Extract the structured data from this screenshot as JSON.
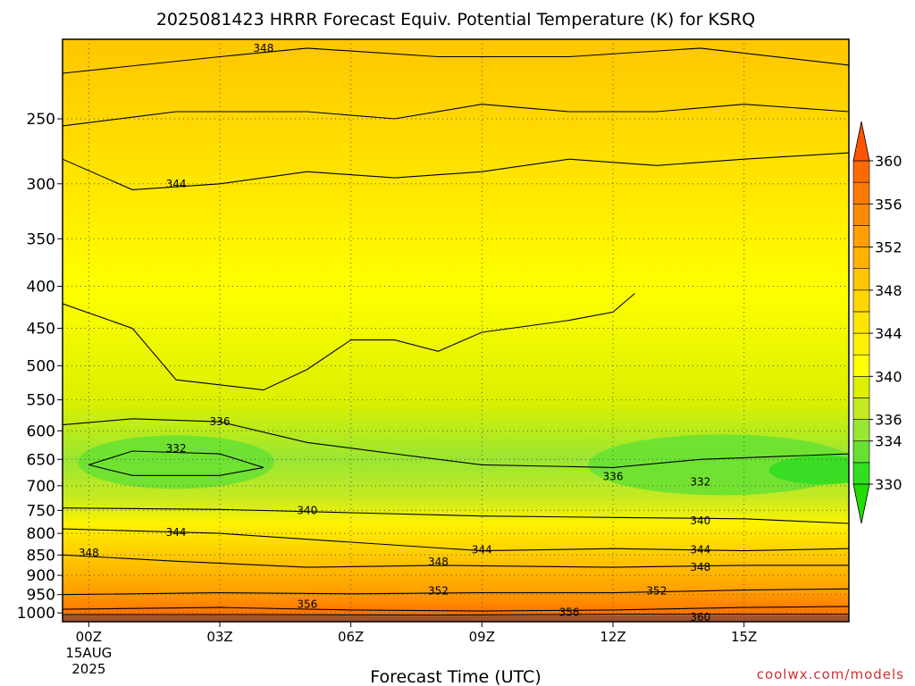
{
  "chart_data": {
    "type": "heatmap",
    "title": "2025081423 HRRR Forecast Equiv. Potential Temperature (K) for KSRQ",
    "xlabel": "Forecast Time (UTC)",
    "ylabel": "",
    "x_ticks": [
      {
        "hour": 0,
        "label": "00Z",
        "date": "15AUG",
        "year": "2025"
      },
      {
        "hour": 3,
        "label": "03Z"
      },
      {
        "hour": 6,
        "label": "06Z"
      },
      {
        "hour": 9,
        "label": "09Z"
      },
      {
        "hour": 12,
        "label": "12Z"
      },
      {
        "hour": 15,
        "label": "15Z"
      }
    ],
    "xlim": [
      -0.6,
      17.4
    ],
    "y_scale": "log",
    "y_ticks": [
      250,
      300,
      350,
      400,
      450,
      500,
      550,
      600,
      650,
      700,
      750,
      800,
      850,
      900,
      950,
      1000
    ],
    "ylim": [
      1025,
      200
    ],
    "grid": true,
    "colorbar": {
      "levels": [
        330,
        332,
        334,
        336,
        338,
        340,
        342,
        344,
        346,
        348,
        350,
        352,
        354,
        356,
        358,
        360
      ],
      "labels": [
        330,
        334,
        336,
        340,
        344,
        348,
        352,
        356,
        360
      ],
      "colors": [
        "#33dd22",
        "#66e033",
        "#99e633",
        "#c4ea22",
        "#ddf000",
        "#ffff00",
        "#fff200",
        "#ffe600",
        "#ffd700",
        "#ffc600",
        "#ffb300",
        "#ff9f00",
        "#ff8c00",
        "#ff7a00",
        "#ff6a00"
      ],
      "extend": "both"
    },
    "contours": [
      {
        "level": 360,
        "label": "360",
        "points": [
          [
            -0.6,
            1005
          ],
          [
            4,
            1005
          ],
          [
            8,
            1006
          ],
          [
            12,
            1004
          ],
          [
            17.4,
            1004
          ]
        ],
        "labels_at": [
          [
            14,
            1012
          ]
        ]
      },
      {
        "level": 356,
        "label": "356",
        "points": [
          [
            -0.6,
            990
          ],
          [
            3,
            985
          ],
          [
            6,
            992
          ],
          [
            9,
            995
          ],
          [
            12,
            992
          ],
          [
            15,
            985
          ],
          [
            17.4,
            982
          ]
        ],
        "labels_at": [
          [
            5,
            976
          ],
          [
            11,
            998
          ]
        ]
      },
      {
        "level": 352,
        "label": "352",
        "points": [
          [
            -0.6,
            950
          ],
          [
            3,
            945
          ],
          [
            6,
            948
          ],
          [
            9,
            945
          ],
          [
            12,
            945
          ],
          [
            15,
            938
          ],
          [
            17.4,
            935
          ]
        ],
        "labels_at": [
          [
            8,
            940
          ],
          [
            13,
            940
          ]
        ]
      },
      {
        "level": 348,
        "label": "348",
        "points": [
          [
            -0.6,
            850
          ],
          [
            2,
            865
          ],
          [
            5,
            880
          ],
          [
            8,
            875
          ],
          [
            12,
            880
          ],
          [
            15,
            875
          ],
          [
            17.4,
            875
          ]
        ],
        "labels_at": [
          [
            0,
            845
          ],
          [
            8,
            867
          ],
          [
            14,
            880
          ]
        ]
      },
      {
        "level": 344,
        "label": "344",
        "points": [
          [
            -0.6,
            790
          ],
          [
            3,
            800
          ],
          [
            6,
            820
          ],
          [
            9,
            840
          ],
          [
            12,
            835
          ],
          [
            15,
            840
          ],
          [
            17.4,
            835
          ]
        ],
        "labels_at": [
          [
            2,
            798
          ],
          [
            9,
            838
          ],
          [
            14,
            838
          ]
        ]
      },
      {
        "level": 340,
        "label": "340",
        "points": [
          [
            -0.6,
            745
          ],
          [
            3,
            748
          ],
          [
            6,
            755
          ],
          [
            9,
            762
          ],
          [
            12,
            765
          ],
          [
            15,
            768
          ],
          [
            17.4,
            778
          ]
        ],
        "labels_at": [
          [
            5,
            750
          ],
          [
            14,
            772
          ]
        ]
      },
      {
        "level": 336,
        "label": "336",
        "points": [
          [
            -0.6,
            590
          ],
          [
            1,
            580
          ],
          [
            3,
            585
          ],
          [
            5,
            620
          ],
          [
            7,
            640
          ],
          [
            9,
            660
          ],
          [
            12,
            665
          ],
          [
            14,
            650
          ],
          [
            17.4,
            640
          ]
        ],
        "labels_at": [
          [
            3,
            585
          ],
          [
            12,
            682
          ]
        ]
      },
      {
        "level": 332,
        "label": "332",
        "points": [
          [
            0,
            660
          ],
          [
            1,
            635
          ],
          [
            3,
            640
          ],
          [
            4,
            665
          ],
          [
            3,
            680
          ],
          [
            1,
            680
          ],
          [
            0,
            660
          ]
        ],
        "labels_at": [
          [
            2,
            630
          ],
          [
            14,
            692
          ]
        ]
      },
      {
        "level": 340,
        "label": "",
        "points": [
          [
            -0.6,
            420
          ],
          [
            1,
            450
          ],
          [
            2,
            520
          ],
          [
            4,
            535
          ],
          [
            5,
            505
          ],
          [
            6,
            465
          ],
          [
            7,
            465
          ],
          [
            8,
            480
          ],
          [
            9,
            455
          ],
          [
            11,
            440
          ],
          [
            12,
            430
          ],
          [
            12.5,
            408
          ]
        ],
        "labels_at": []
      },
      {
        "level": 344,
        "label": "344",
        "points": [
          [
            -0.6,
            280
          ],
          [
            1,
            305
          ],
          [
            3,
            300
          ],
          [
            5,
            290
          ],
          [
            7,
            295
          ],
          [
            9,
            290
          ],
          [
            11,
            280
          ],
          [
            13,
            285
          ],
          [
            15,
            280
          ],
          [
            17.4,
            275
          ]
        ],
        "labels_at": [
          [
            2,
            300
          ]
        ]
      },
      {
        "level": 346,
        "label": "",
        "points": [
          [
            -0.6,
            255
          ],
          [
            2,
            245
          ],
          [
            5,
            245
          ],
          [
            7,
            250
          ],
          [
            9,
            240
          ],
          [
            11,
            245
          ],
          [
            13,
            245
          ],
          [
            15,
            240
          ],
          [
            17.4,
            245
          ]
        ],
        "labels_at": []
      },
      {
        "level": 348,
        "label": "348",
        "points": [
          [
            -0.6,
            220
          ],
          [
            3,
            210
          ],
          [
            5,
            205
          ],
          [
            8,
            210
          ],
          [
            11,
            210
          ],
          [
            14,
            205
          ],
          [
            17.4,
            215
          ]
        ],
        "labels_at": [
          [
            4,
            205
          ]
        ]
      }
    ]
  },
  "credit": "coolwx.com/models"
}
